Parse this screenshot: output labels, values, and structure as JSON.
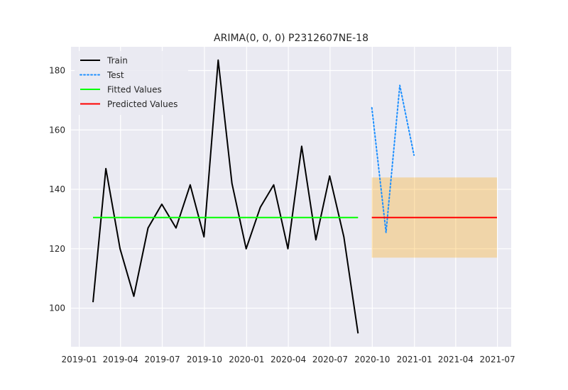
{
  "chart_data": {
    "type": "line",
    "title": "ARIMA(0, 0, 0) P2312607NE-18",
    "xlabel": "",
    "ylabel": "",
    "xlim": [
      "2018-12-14",
      "2021-07-31"
    ],
    "ylim": [
      87,
      188
    ],
    "x_tick_labels": [
      "2019-01",
      "2019-04",
      "2019-07",
      "2019-10",
      "2020-01",
      "2020-04",
      "2020-07",
      "2020-10",
      "2021-01",
      "2021-04",
      "2021-07"
    ],
    "y_tick_labels": [
      "100",
      "120",
      "140",
      "160",
      "180"
    ],
    "grid": true,
    "legend_position": "upper-left",
    "colors": {
      "background": "#eaeaf2",
      "grid": "#ffffff",
      "train": "#000000",
      "test": "#1e90ff",
      "fitted": "#00ff00",
      "predicted": "#ff0000",
      "interval": "#ffa500"
    },
    "series": [
      {
        "name": "Train",
        "style": "solid",
        "x": [
          "2019-01-31",
          "2019-02-28",
          "2019-03-31",
          "2019-04-30",
          "2019-05-31",
          "2019-06-30",
          "2019-07-31",
          "2019-08-31",
          "2019-09-30",
          "2019-10-31",
          "2019-11-30",
          "2019-12-31",
          "2020-01-31",
          "2020-02-29",
          "2020-03-31",
          "2020-04-30",
          "2020-05-31",
          "2020-06-30",
          "2020-07-31",
          "2020-08-31"
        ],
        "y": [
          102,
          147,
          120,
          104,
          127,
          135,
          127,
          141.5,
          124,
          183.5,
          142,
          120,
          134,
          141.5,
          120,
          154.5,
          123,
          144.5,
          124,
          91.5
        ]
      },
      {
        "name": "Test",
        "style": "dotted",
        "x": [
          "2020-09-30",
          "2020-10-31",
          "2020-11-30",
          "2020-12-31"
        ],
        "y": [
          167.5,
          125.5,
          175,
          151.5
        ]
      },
      {
        "name": "Fitted Values",
        "style": "solid",
        "x": [
          "2019-01-31",
          "2020-08-31"
        ],
        "y": [
          130.5,
          130.5
        ]
      },
      {
        "name": "Predicted Values",
        "style": "solid",
        "x": [
          "2020-09-30",
          "2021-06-30"
        ],
        "y": [
          130.5,
          130.5
        ]
      }
    ],
    "confidence_interval": {
      "x": [
        "2020-09-30",
        "2021-06-30"
      ],
      "lower": 117,
      "upper": 144
    }
  }
}
